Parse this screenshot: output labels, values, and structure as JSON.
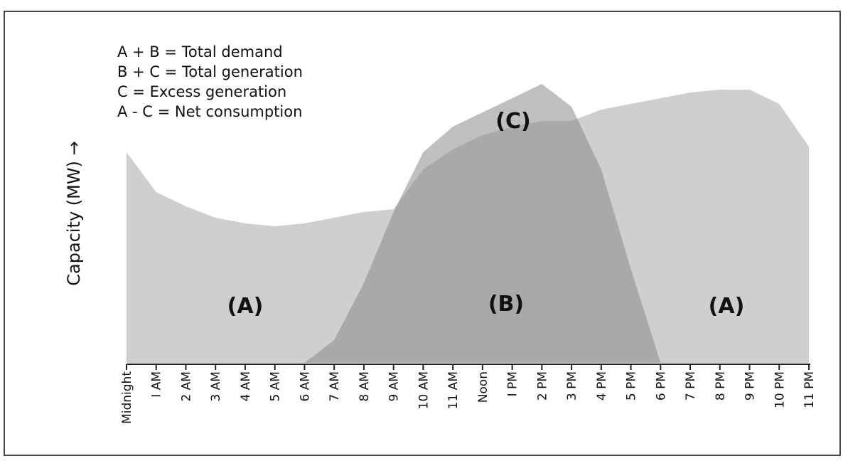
{
  "chart_data": {
    "type": "area",
    "y_label": "Capacity (MW) →",
    "key": [
      "A + B = Total demand",
      "B + C = Total generation",
      "C = Excess generation",
      "A - C = Net consumption"
    ],
    "annotations": [
      "(A)",
      "(B)",
      "(C)",
      "(A)"
    ],
    "categories": [
      "Midnight",
      "I AM",
      "2 AM",
      "3 AM",
      "4 AM",
      "5 AM",
      "6 AM",
      "7 AM",
      "8 AM",
      "9 AM",
      "10 AM",
      "11 AM",
      "Noon",
      "I PM",
      "2 PM",
      "3 PM",
      "4 PM",
      "5 PM",
      "6 PM",
      "7 PM",
      "8 PM",
      "9 PM",
      "10 PM",
      "11 PM"
    ],
    "series": [
      {
        "color": "#cfcfcf",
        "values": [
          74,
          60,
          55,
          51,
          49,
          48,
          49,
          51,
          53,
          54,
          68,
          75,
          80,
          83,
          85,
          85,
          89,
          91,
          93,
          95,
          96,
          96,
          91,
          76
        ]
      },
      {
        "color": "#8a8a8a",
        "values": [
          0,
          0,
          0,
          0,
          0,
          0,
          0,
          8,
          28,
          53,
          74,
          83,
          88,
          93,
          98,
          90,
          68,
          33,
          0,
          0,
          0,
          0,
          0,
          0
        ]
      }
    ],
    "ylim": [
      0,
      100
    ]
  }
}
